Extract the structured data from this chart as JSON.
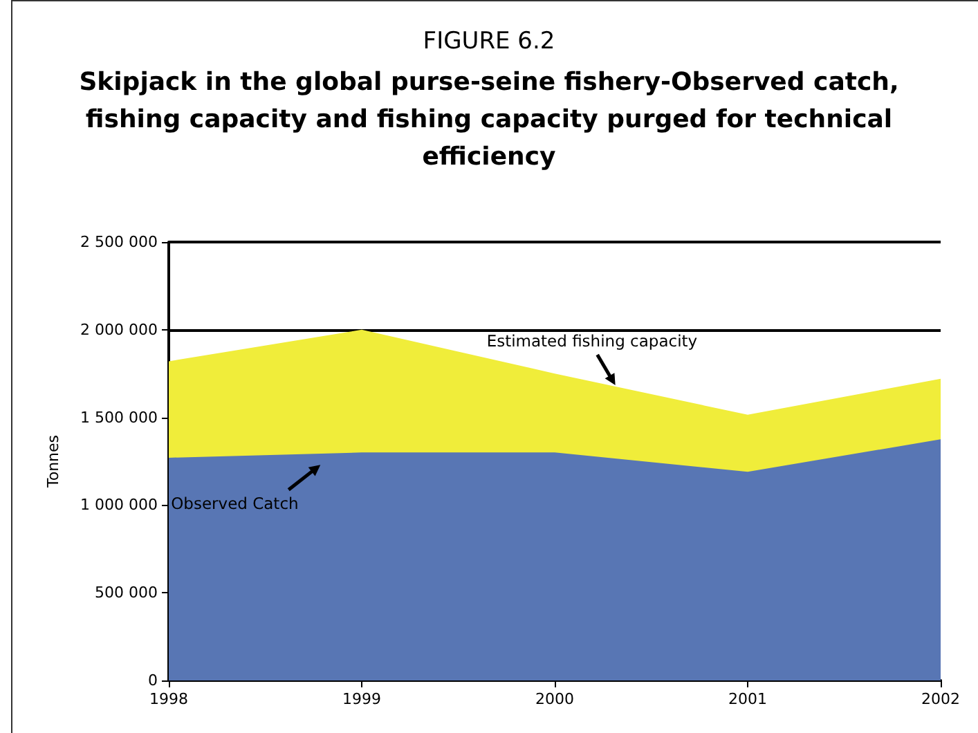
{
  "chart_data": {
    "type": "area",
    "title": "FIGURE 6.2",
    "subtitle": "Skipjack in the global purse-seine fishery-Observed catch, fishing capacity and fishing capacity purged for technical efficiency",
    "ylabel": "Tonnes",
    "categories": [
      "1998",
      "1999",
      "2000",
      "2001",
      "2002"
    ],
    "series": [
      {
        "name": "Estimated fishing capacity",
        "color": "#f0ed3a",
        "values": [
          1820000,
          2000000,
          1750000,
          1515000,
          1720000
        ]
      },
      {
        "name": "Observed Catch",
        "color": "#5876b4",
        "values": [
          1270000,
          1300000,
          1300000,
          1190000,
          1375000
        ]
      }
    ],
    "ylim": [
      0,
      2500000
    ],
    "yticks": [
      {
        "value": 0,
        "label": "0"
      },
      {
        "value": 500000,
        "label": "500 000"
      },
      {
        "value": 1000000,
        "label": "1 000 000"
      },
      {
        "value": 1500000,
        "label": "1 500 000"
      },
      {
        "value": 2000000,
        "label": "2 000 000"
      },
      {
        "value": 2500000,
        "label": "2 500 000"
      }
    ],
    "grid": "y",
    "legend": false
  }
}
